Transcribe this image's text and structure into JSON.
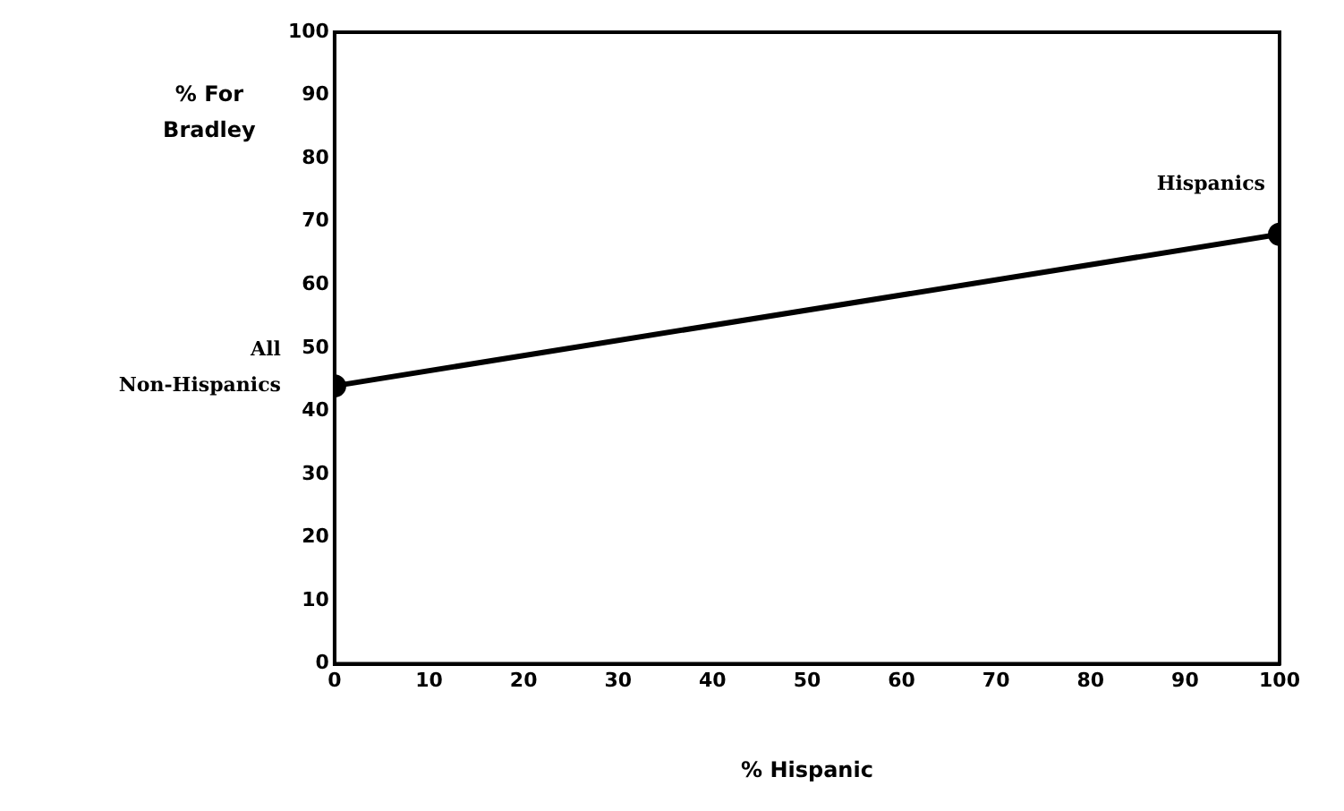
{
  "chart_data": {
    "type": "line",
    "xlabel": "% Hispanic",
    "ylabel": "% For Bradley",
    "x": [
      0,
      100
    ],
    "series": [
      {
        "color": "#000000",
        "values": [
          44,
          68
        ]
      }
    ],
    "xlim": [
      0,
      100
    ],
    "xticks": [
      0,
      10,
      20,
      30,
      40,
      50,
      60,
      70,
      80,
      90,
      100
    ],
    "ylim": [
      0,
      100
    ],
    "yticks": [
      0,
      10,
      20,
      30,
      40,
      50,
      60,
      70,
      80,
      90,
      100
    ],
    "grid": false,
    "legend": false,
    "marker": "circle",
    "line_style": "solid",
    "annotations": [
      {
        "text": "All Non-Hispanics",
        "x": 0,
        "y": 44
      },
      {
        "text": "Hispanics",
        "x": 100,
        "y": 68
      }
    ]
  }
}
